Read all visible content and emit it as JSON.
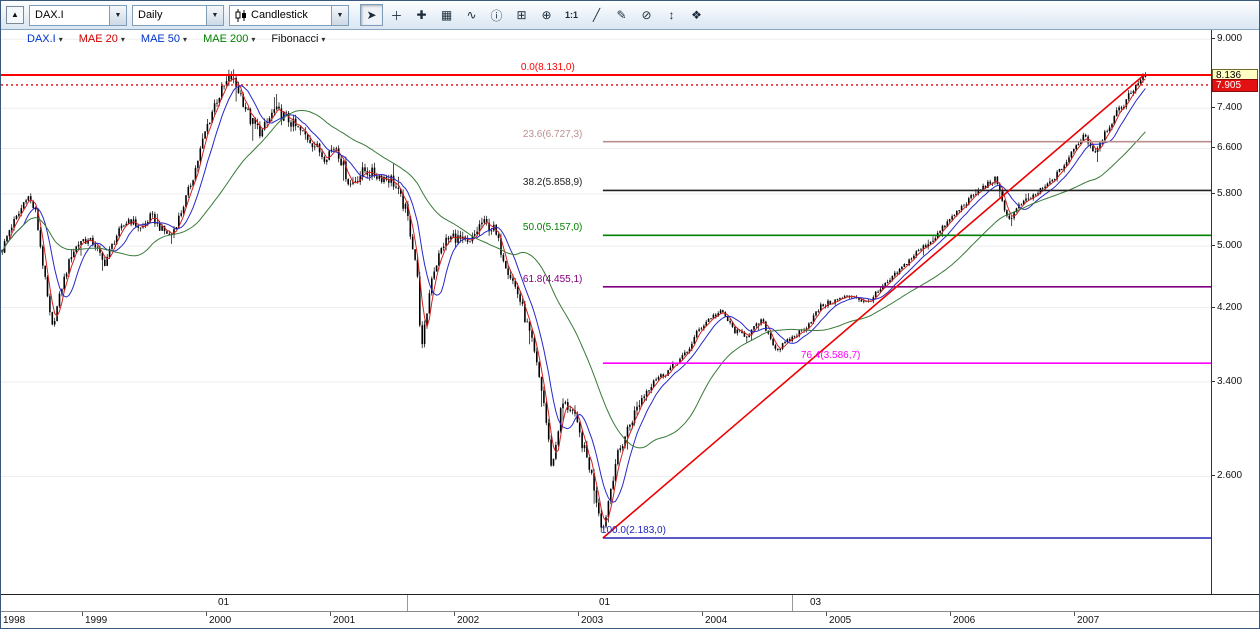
{
  "toolbar": {
    "collapse_icon": "▲",
    "dropdown_caret": "▼",
    "symbol": {
      "value": "DAX.I"
    },
    "timeframe": {
      "value": "Daily"
    },
    "chart_type": {
      "value": "Candlestick"
    },
    "icons": [
      {
        "name": "pointer-icon",
        "glyph": "➤",
        "pressed": true
      },
      {
        "name": "cross-add-icon",
        "glyph": "＋"
      },
      {
        "name": "crosshair-icon",
        "glyph": "✚"
      },
      {
        "name": "grid-candles-icon",
        "glyph": "▦"
      },
      {
        "name": "indicators-wave-icon",
        "glyph": "∿"
      },
      {
        "name": "info-icon",
        "glyph": "ⓘ"
      },
      {
        "name": "zoom-window-icon",
        "glyph": "⊞"
      },
      {
        "name": "zoom-in-icon",
        "glyph": "⊕"
      },
      {
        "name": "one-to-one-icon",
        "glyph": "1:1"
      },
      {
        "name": "trendline-tool-icon",
        "glyph": "╱"
      },
      {
        "name": "edit-drawing-icon",
        "glyph": "✎"
      },
      {
        "name": "erase-drawing-icon",
        "glyph": "⊘"
      },
      {
        "name": "fit-vertical-icon",
        "glyph": "↕"
      },
      {
        "name": "pan-chart-icon",
        "glyph": "❖"
      }
    ]
  },
  "legend": {
    "caret": "▾",
    "items": [
      {
        "label": "DAX.I",
        "color": "#0033cc"
      },
      {
        "label": "MAE 20",
        "color": "#d00000"
      },
      {
        "label": "MAE 50",
        "color": "#0033cc"
      },
      {
        "label": "MAE 200",
        "color": "#008000"
      },
      {
        "label": "Fibonacci",
        "color": "#111111"
      }
    ]
  },
  "price_axis": {
    "ticks": [
      {
        "label": "9.000",
        "value": 9000
      },
      {
        "label": "7.400",
        "value": 7400
      },
      {
        "label": "6.600",
        "value": 6600
      },
      {
        "label": "5.800",
        "value": 5800
      },
      {
        "label": "5.000",
        "value": 5000
      },
      {
        "label": "4.200",
        "value": 4200
      },
      {
        "label": "3.400",
        "value": 3400
      },
      {
        "label": "2.600",
        "value": 2600
      }
    ],
    "last_badge": {
      "label": "8.136",
      "value": 8136,
      "bg": "#ffffc4"
    },
    "alert_badge": {
      "label": "7.905",
      "value": 7905,
      "bg": "#e21212"
    }
  },
  "time_axis": {
    "years": [
      {
        "label": "1998",
        "value": 1998
      },
      {
        "label": "1999",
        "value": 1999
      },
      {
        "label": "2000",
        "value": 2000
      },
      {
        "label": "2001",
        "value": 2001
      },
      {
        "label": "2002",
        "value": 2002
      },
      {
        "label": "2003",
        "value": 2003
      },
      {
        "label": "2004",
        "value": 2004
      },
      {
        "label": "2005",
        "value": 2005
      },
      {
        "label": "2006",
        "value": 2006
      },
      {
        "label": "2007",
        "value": 2007
      }
    ]
  },
  "period_axis": {
    "markers": [
      {
        "label": "01",
        "t": 2000.08
      },
      {
        "label": "01",
        "t": 2003.15
      },
      {
        "label": "03",
        "t": 2004.85
      }
    ],
    "dividers": [
      2001.62,
      2004.72
    ]
  },
  "chart_data": {
    "type": "candlestick",
    "symbol": "DAX.I",
    "timeframe": "Daily",
    "y_scale": "log",
    "x_range": [
      1998.35,
      2008.1
    ],
    "bars_end_t": 2007.58,
    "y_ticks": [
      9000,
      7400,
      6600,
      5800,
      5000,
      4200,
      3400,
      2600
    ],
    "last_price": 8136,
    "current_price_line": {
      "price": 7905,
      "color": "#e00000",
      "style": "dotted"
    },
    "price_path": [
      [
        1998.35,
        4900
      ],
      [
        1998.42,
        5250
      ],
      [
        1998.5,
        5500
      ],
      [
        1998.56,
        5800
      ],
      [
        1998.63,
        5500
      ],
      [
        1998.7,
        4600
      ],
      [
        1998.76,
        3950
      ],
      [
        1998.84,
        4450
      ],
      [
        1998.92,
        4900
      ],
      [
        1999.0,
        5100
      ],
      [
        1999.1,
        5050
      ],
      [
        1999.18,
        4750
      ],
      [
        1999.28,
        5150
      ],
      [
        1999.38,
        5400
      ],
      [
        1999.48,
        5250
      ],
      [
        1999.56,
        5450
      ],
      [
        1999.64,
        5250
      ],
      [
        1999.72,
        5150
      ],
      [
        1999.8,
        5500
      ],
      [
        1999.9,
        6100
      ],
      [
        2000.0,
        6950
      ],
      [
        2000.08,
        7550
      ],
      [
        2000.2,
        8100
      ],
      [
        2000.28,
        7700
      ],
      [
        2000.36,
        7150
      ],
      [
        2000.45,
        6900
      ],
      [
        2000.55,
        7350
      ],
      [
        2000.65,
        7200
      ],
      [
        2000.75,
        6950
      ],
      [
        2000.85,
        6750
      ],
      [
        2000.95,
        6450
      ],
      [
        2001.05,
        6650
      ],
      [
        2001.16,
        5950
      ],
      [
        2001.28,
        6200
      ],
      [
        2001.4,
        6100
      ],
      [
        2001.5,
        6050
      ],
      [
        2001.62,
        5500
      ],
      [
        2001.7,
        4700
      ],
      [
        2001.74,
        3700
      ],
      [
        2001.82,
        4600
      ],
      [
        2001.92,
        5050
      ],
      [
        2002.0,
        5150
      ],
      [
        2002.12,
        5000
      ],
      [
        2002.22,
        5350
      ],
      [
        2002.32,
        5250
      ],
      [
        2002.42,
        4750
      ],
      [
        2002.52,
        4350
      ],
      [
        2002.62,
        3850
      ],
      [
        2002.72,
        3250
      ],
      [
        2002.79,
        2650
      ],
      [
        2002.87,
        3200
      ],
      [
        2002.95,
        3150
      ],
      [
        2003.02,
        2900
      ],
      [
        2003.1,
        2650
      ],
      [
        2003.2,
        2230
      ],
      [
        2003.3,
        2700
      ],
      [
        2003.4,
        2980
      ],
      [
        2003.5,
        3220
      ],
      [
        2003.6,
        3420
      ],
      [
        2003.7,
        3480
      ],
      [
        2003.78,
        3580
      ],
      [
        2003.88,
        3700
      ],
      [
        2003.96,
        3920
      ],
      [
        2004.06,
        4080
      ],
      [
        2004.16,
        4150
      ],
      [
        2004.26,
        3930
      ],
      [
        2004.36,
        3880
      ],
      [
        2004.48,
        4050
      ],
      [
        2004.6,
        3720
      ],
      [
        2004.72,
        3850
      ],
      [
        2004.84,
        3980
      ],
      [
        2004.96,
        4220
      ],
      [
        2005.1,
        4300
      ],
      [
        2005.22,
        4350
      ],
      [
        2005.32,
        4250
      ],
      [
        2005.44,
        4420
      ],
      [
        2005.58,
        4650
      ],
      [
        2005.72,
        4900
      ],
      [
        2005.86,
        5100
      ],
      [
        2006.0,
        5400
      ],
      [
        2006.12,
        5650
      ],
      [
        2006.24,
        5880
      ],
      [
        2006.36,
        6050
      ],
      [
        2006.47,
        5380
      ],
      [
        2006.56,
        5620
      ],
      [
        2006.68,
        5780
      ],
      [
        2006.8,
        5980
      ],
      [
        2006.92,
        6300
      ],
      [
        2007.0,
        6600
      ],
      [
        2007.08,
        6880
      ],
      [
        2007.16,
        6520
      ],
      [
        2007.26,
        6980
      ],
      [
        2007.36,
        7350
      ],
      [
        2007.46,
        7750
      ],
      [
        2007.52,
        8020
      ],
      [
        2007.56,
        8131
      ],
      [
        2007.58,
        7905
      ]
    ],
    "moving_averages": [
      {
        "name": "MAE 20",
        "color": "#d02020",
        "window_weeks": 4
      },
      {
        "name": "MAE 50",
        "color": "#2828c8",
        "window_weeks": 10
      },
      {
        "name": "MAE 200",
        "color": "#3a7a3a",
        "window_weeks": 41
      }
    ],
    "fibonacci": {
      "low": {
        "t": 2003.2,
        "price": 2183
      },
      "high": {
        "t": 2007.56,
        "price": 8131
      },
      "levels": [
        {
          "pct": 0.0,
          "price": 8131.0,
          "label": "0.0(8.131,0)",
          "color": "#ff0000",
          "full_width": true
        },
        {
          "pct": 23.6,
          "price": 6727.3,
          "label": "23.6(6.727,3)",
          "color": "#bc8f8f"
        },
        {
          "pct": 38.2,
          "price": 5858.9,
          "label": "38.2(5.858,9)",
          "color": "#222222"
        },
        {
          "pct": 50.0,
          "price": 5157.0,
          "label": "50.0(5.157,0)",
          "color": "#008000"
        },
        {
          "pct": 61.8,
          "price": 4455.1,
          "label": "61.8(4.455,1)",
          "color": "#800080"
        },
        {
          "pct": 76.4,
          "price": 3586.7,
          "label": "76.4(3.586,7)",
          "color": "#ff00ff"
        },
        {
          "pct": 100.0,
          "price": 2183.0,
          "label": "100.0(2.183,0)",
          "color": "#2222bb"
        }
      ]
    },
    "trend_line": {
      "from": {
        "t": 2003.2,
        "price": 2183
      },
      "to": {
        "t": 2007.56,
        "price": 8131
      },
      "color": "#ee0000"
    }
  }
}
